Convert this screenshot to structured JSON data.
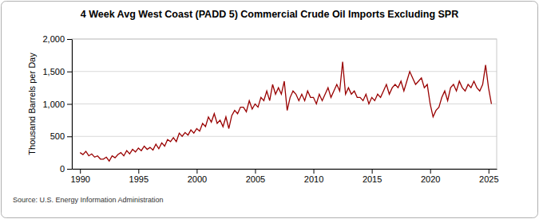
{
  "chart_data": {
    "type": "line",
    "title": "4 Week Avg West Coast (PADD 5) Commercial Crude Oil Imports Excluding SPR",
    "y_label": "Thousand Barrels per Day",
    "source": "Source: U.S. Energy Information Administration",
    "color": "#990000",
    "grid": true,
    "xlim": [
      1989.3,
      2025.7
    ],
    "xticks": [
      1990,
      1995,
      2000,
      2005,
      2010,
      2015,
      2020,
      2025
    ],
    "ylim": [
      0,
      2000
    ],
    "yticks": [
      0,
      500,
      {
        "value": 1000,
        "label": "1,000"
      },
      {
        "value": 1500,
        "label": "1,500"
      },
      {
        "value": 2000,
        "label": "2,000"
      }
    ],
    "x": [
      1990,
      1990.25,
      1990.5,
      1990.75,
      1991,
      1991.25,
      1991.5,
      1991.75,
      1992,
      1992.25,
      1992.5,
      1992.75,
      1993,
      1993.25,
      1993.5,
      1993.75,
      1994,
      1994.25,
      1994.5,
      1994.75,
      1995,
      1995.25,
      1995.5,
      1995.75,
      1996,
      1996.25,
      1996.5,
      1996.75,
      1997,
      1997.25,
      1997.5,
      1997.75,
      1998,
      1998.25,
      1998.5,
      1998.75,
      1999,
      1999.25,
      1999.5,
      1999.75,
      2000,
      2000.25,
      2000.5,
      2000.75,
      2001,
      2001.25,
      2001.5,
      2001.75,
      2002,
      2002.25,
      2002.5,
      2002.75,
      2003,
      2003.25,
      2003.5,
      2003.75,
      2004,
      2004.25,
      2004.5,
      2004.75,
      2005,
      2005.25,
      2005.5,
      2005.75,
      2006,
      2006.25,
      2006.5,
      2006.75,
      2007,
      2007.25,
      2007.5,
      2007.75,
      2008,
      2008.25,
      2008.5,
      2008.75,
      2009,
      2009.25,
      2009.5,
      2009.75,
      2010,
      2010.25,
      2010.5,
      2010.75,
      2011,
      2011.25,
      2011.5,
      2011.75,
      2012,
      2012.25,
      2012.5,
      2012.75,
      2013,
      2013.25,
      2013.5,
      2013.75,
      2014,
      2014.25,
      2014.5,
      2014.75,
      2015,
      2015.25,
      2015.5,
      2015.75,
      2016,
      2016.25,
      2016.5,
      2016.75,
      2017,
      2017.25,
      2017.5,
      2017.75,
      2018,
      2018.25,
      2018.5,
      2018.75,
      2019,
      2019.25,
      2019.5,
      2019.75,
      2020,
      2020.25,
      2020.5,
      2020.75,
      2021,
      2021.25,
      2021.5,
      2021.75,
      2022,
      2022.25,
      2022.5,
      2022.75,
      2023,
      2023.25,
      2023.5,
      2023.75,
      2024,
      2024.25,
      2024.5,
      2024.75,
      2025,
      2025.25
    ],
    "values": [
      250,
      220,
      270,
      200,
      230,
      180,
      200,
      150,
      150,
      180,
      120,
      200,
      170,
      220,
      250,
      200,
      280,
      230,
      300,
      260,
      320,
      280,
      350,
      300,
      330,
      290,
      380,
      310,
      400,
      350,
      450,
      420,
      480,
      420,
      550,
      500,
      560,
      520,
      600,
      550,
      620,
      580,
      700,
      650,
      800,
      720,
      850,
      700,
      750,
      650,
      800,
      620,
      820,
      900,
      850,
      950,
      950,
      880,
      1050,
      920,
      1000,
      950,
      1100,
      1050,
      1200,
      1050,
      1300,
      1150,
      1250,
      1150,
      1350,
      900,
      1100,
      1200,
      1150,
      1050,
      1150,
      1050,
      1200,
      1100,
      1100,
      1000,
      1150,
      1050,
      1150,
      1250,
      1100,
      1200,
      1300,
      1200,
      1650,
      1150,
      1250,
      1150,
      1200,
      1100,
      1100,
      1050,
      1150,
      1000,
      1100,
      1050,
      1150,
      1100,
      1200,
      1300,
      1150,
      1250,
      1300,
      1250,
      1350,
      1200,
      1350,
      1500,
      1400,
      1300,
      1350,
      1400,
      1250,
      1300,
      1000,
      800,
      900,
      950,
      1100,
      1200,
      1050,
      1250,
      1300,
      1200,
      1350,
      1250,
      1200,
      1300,
      1250,
      1350,
      1250,
      1200,
      1300,
      1600,
      1250,
      1000
    ]
  }
}
